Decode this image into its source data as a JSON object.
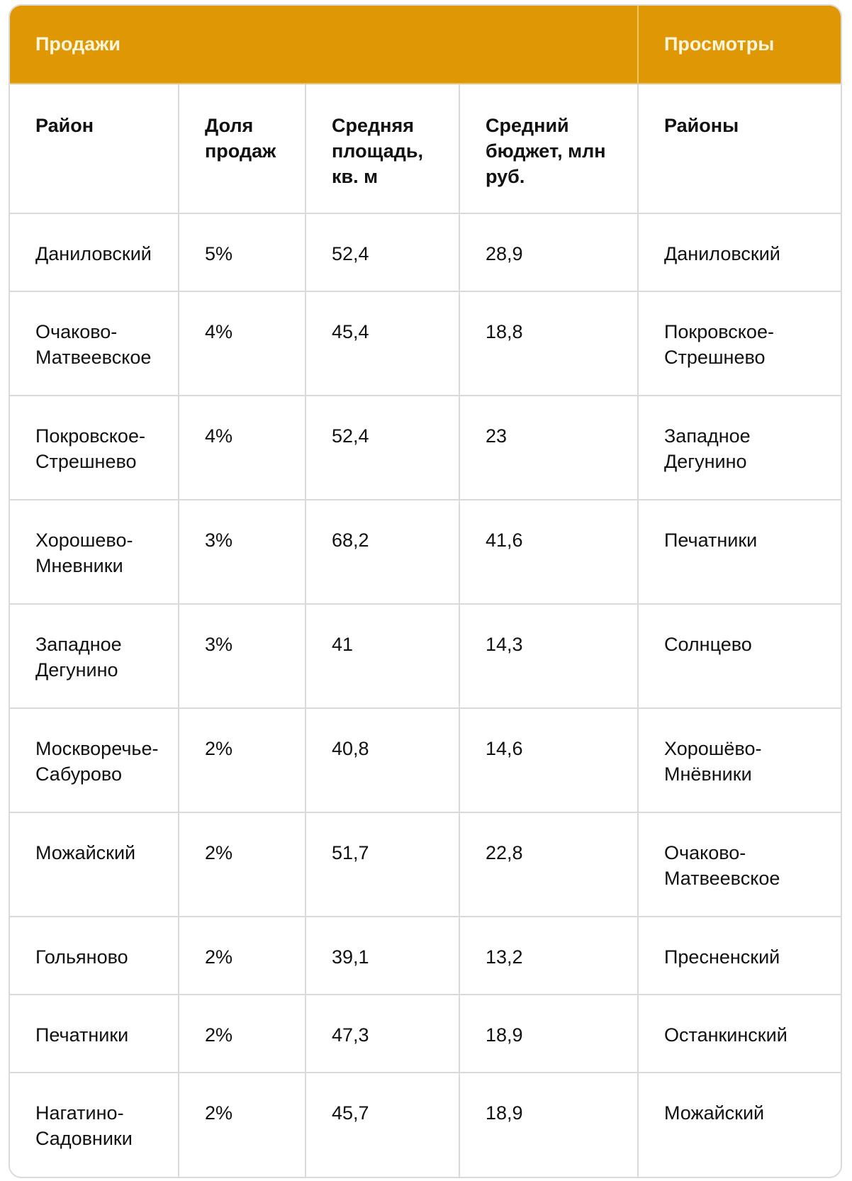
{
  "table": {
    "groups": {
      "sales": "Продажи",
      "views": "Просмотры"
    },
    "columns": {
      "district": "Район",
      "share": "Доля продаж",
      "area": "Средняя площадь, кв. м",
      "budget": "Средний бюджет, млн руб.",
      "view_districts": "Районы"
    },
    "rows": [
      {
        "district": "Даниловский",
        "share": "5%",
        "area": "52,4",
        "budget": "28,9",
        "view_district": "Даниловский"
      },
      {
        "district": "Очаково-Матвеевское",
        "share": "4%",
        "area": "45,4",
        "budget": "18,8",
        "view_district": "Покровское-Стрешнево"
      },
      {
        "district": "Покровское-Стрешнево",
        "share": "4%",
        "area": "52,4",
        "budget": "23",
        "view_district": "Западное Дегунино"
      },
      {
        "district": "Хорошево-Мневники",
        "share": "3%",
        "area": "68,2",
        "budget": "41,6",
        "view_district": "Печатники"
      },
      {
        "district": "Западное Дегунино",
        "share": "3%",
        "area": "41",
        "budget": "14,3",
        "view_district": "Солнцево"
      },
      {
        "district": "Москворечье-Сабурово",
        "share": "2%",
        "area": "40,8",
        "budget": "14,6",
        "view_district": "Хорошёво-Мнёвники"
      },
      {
        "district": "Можайский",
        "share": "2%",
        "area": "51,7",
        "budget": "22,8",
        "view_district": "Очаково-Матвеевское"
      },
      {
        "district": "Гольяново",
        "share": "2%",
        "area": "39,1",
        "budget": "13,2",
        "view_district": "Пресненский"
      },
      {
        "district": "Печатники",
        "share": "2%",
        "area": "47,3",
        "budget": "18,9",
        "view_district": "Останкинский"
      },
      {
        "district": "Нагатино-Садовники",
        "share": "2%",
        "area": "45,7",
        "budget": "18,9",
        "view_district": "Можайский"
      }
    ]
  },
  "colors": {
    "header_bg": "#df9704",
    "header_text": "#fff6dc",
    "border": "#dadada",
    "text": "#111111"
  }
}
